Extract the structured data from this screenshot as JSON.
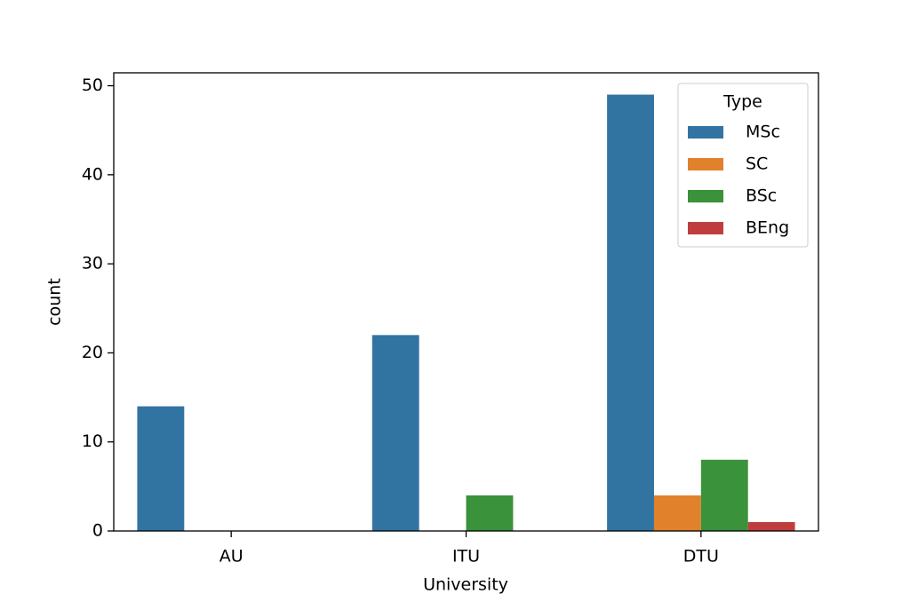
{
  "chart_data": {
    "type": "bar",
    "x_label": "University",
    "y_label": "count",
    "categories": [
      "AU",
      "ITU",
      "DTU"
    ],
    "series": [
      {
        "name": "MSc",
        "color": "#3274a1",
        "values": [
          14,
          22,
          49
        ]
      },
      {
        "name": "SC",
        "color": "#e1812c",
        "values": [
          null,
          null,
          4
        ]
      },
      {
        "name": "BSc",
        "color": "#3a923a",
        "values": [
          null,
          4,
          8
        ]
      },
      {
        "name": "BEng",
        "color": "#c03d3e",
        "values": [
          null,
          null,
          1
        ]
      }
    ],
    "ylim": [
      0,
      51.45
    ],
    "yticks": [
      0,
      10,
      20,
      30,
      40,
      50
    ],
    "legend_title": "Type",
    "legend": "upper right"
  }
}
